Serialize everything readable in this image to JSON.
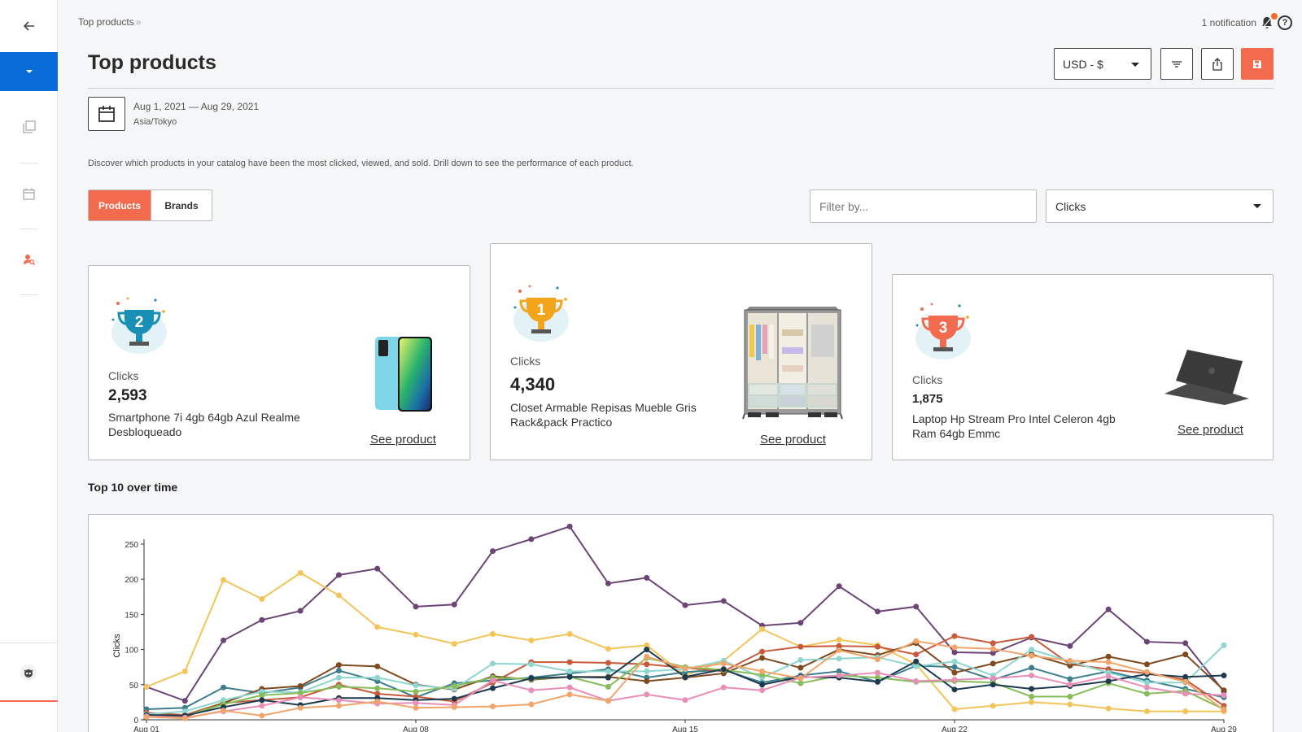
{
  "breadcrumb": {
    "current": "Top products",
    "separator": "»"
  },
  "header": {
    "notifications": "1 notification",
    "title": "Top products",
    "currency": "USD - $"
  },
  "icons": {
    "back": "arrow-left-icon",
    "pages": "pages-icon",
    "calendar": "calendar-icon",
    "user_search": "user-search-icon",
    "bell": "bell-icon",
    "help": "help-icon",
    "filter": "filter-lines-icon",
    "share": "share-icon",
    "save": "save-icon"
  },
  "date": {
    "range": "Aug 1, 2021 — Aug 29, 2021",
    "timezone": "Asia/Tokyo"
  },
  "description": "Discover which products in your catalog have been the most clicked, viewed, and sold. Drill down to see the performance of each product.",
  "tabs": {
    "products": "Products",
    "brands": "Brands"
  },
  "filter": {
    "placeholder": "Filter by...",
    "metric": "Clicks"
  },
  "podium": [
    {
      "rank": "2",
      "label": "Clicks",
      "value": "2,593",
      "name": "Smartphone 7i 4gb 64gb Azul Realme Desbloqueado",
      "link": "See product",
      "color": "#1a8fb5"
    },
    {
      "rank": "1",
      "label": "Clicks",
      "value": "4,340",
      "name": "Closet Armable Repisas Mueble Gris Rack&pack Practico",
      "link": "See product",
      "color": "#f2a51b"
    },
    {
      "rank": "3",
      "label": "Clicks",
      "value": "1,875",
      "name": "Laptop Hp Stream Pro Intel Celeron 4gb Ram 64gb Emmc",
      "link": "See product",
      "color": "#f26b4f"
    }
  ],
  "chart_heading": "Top 10 over time",
  "colors": {
    "accent": "#f26b4f",
    "nav_active": "#0a6cd6"
  },
  "chart_data": {
    "type": "line",
    "ylabel": "Clicks",
    "ylim": [
      0,
      280
    ],
    "yticks": [
      0,
      50,
      100,
      150,
      200,
      250
    ],
    "x": [
      "Aug 01",
      "Aug 02",
      "Aug 03",
      "Aug 04",
      "Aug 05",
      "Aug 06",
      "Aug 07",
      "Aug 08",
      "Aug 09",
      "Aug 10",
      "Aug 11",
      "Aug 12",
      "Aug 13",
      "Aug 14",
      "Aug 15",
      "Aug 16",
      "Aug 17",
      "Aug 18",
      "Aug 19",
      "Aug 20",
      "Aug 21",
      "Aug 22",
      "Aug 23",
      "Aug 24",
      "Aug 25",
      "Aug 26",
      "Aug 27",
      "Aug 28",
      "Aug 29"
    ],
    "xticks": [
      "Aug 01",
      "Aug 08",
      "Aug 15",
      "Aug 22",
      "Aug 29"
    ],
    "grid": false,
    "series": [
      {
        "color": "#6b4576",
        "values": [
          47,
          27,
          113,
          142,
          155,
          206,
          215,
          161,
          164,
          240,
          257,
          275,
          194,
          202,
          163,
          169,
          134,
          138,
          190,
          154,
          161,
          96,
          95,
          117,
          105,
          157,
          111,
          109,
          40
        ]
      },
      {
        "color": "#f2c45a",
        "values": [
          47,
          69,
          199,
          172,
          209,
          177,
          132,
          121,
          108,
          122,
          113,
          122,
          101,
          106,
          63,
          84,
          129,
          104,
          114,
          106,
          79,
          15,
          20,
          25,
          22,
          16,
          12,
          12,
          12
        ]
      },
      {
        "color": "#3d7d8c",
        "values": [
          15,
          17,
          46,
          38,
          46,
          70,
          55,
          32,
          52,
          56,
          60,
          66,
          72,
          60,
          68,
          71,
          53,
          63,
          69,
          54,
          77,
          75,
          57,
          74,
          58,
          69,
          56,
          44,
          32
        ]
      },
      {
        "color": "#c85a3c",
        "values": [
          10,
          7,
          24,
          28,
          32,
          50,
          37,
          33,
          26,
          53,
          82,
          82,
          81,
          79,
          74,
          69,
          97,
          104,
          105,
          104,
          93,
          119,
          109,
          118,
          79,
          72,
          66,
          57,
          20
        ]
      },
      {
        "color": "#7f4a1f",
        "values": [
          6,
          4,
          24,
          44,
          48,
          78,
          76,
          50,
          43,
          62,
          57,
          61,
          61,
          55,
          60,
          66,
          88,
          74,
          100,
          92,
          109,
          67,
          80,
          93,
          77,
          90,
          79,
          93,
          42
        ]
      },
      {
        "color": "#8ed6cf",
        "values": [
          8,
          12,
          28,
          40,
          39,
          60,
          60,
          49,
          44,
          80,
          79,
          69,
          69,
          69,
          72,
          84,
          60,
          85,
          87,
          89,
          76,
          83,
          63,
          100,
          83,
          67,
          53,
          53,
          106
        ]
      },
      {
        "color": "#86bd5a",
        "values": [
          6,
          6,
          22,
          35,
          38,
          47,
          45,
          40,
          48,
          60,
          58,
          61,
          47,
          88,
          75,
          71,
          64,
          52,
          63,
          60,
          54,
          55,
          53,
          33,
          33,
          52,
          37,
          41,
          15
        ]
      },
      {
        "color": "#1e3a4f",
        "values": [
          7,
          6,
          18,
          28,
          21,
          31,
          31,
          28,
          30,
          45,
          59,
          61,
          60,
          100,
          61,
          72,
          50,
          61,
          60,
          54,
          83,
          43,
          50,
          44,
          48,
          55,
          65,
          61,
          63
        ]
      },
      {
        "color": "#e88fb8",
        "values": [
          5,
          3,
          12,
          20,
          32,
          28,
          23,
          24,
          21,
          56,
          42,
          46,
          27,
          36,
          28,
          46,
          42,
          60,
          63,
          67,
          55,
          57,
          59,
          63,
          50,
          62,
          46,
          37,
          35
        ]
      },
      {
        "color": "#f2a56b",
        "values": [
          4,
          2,
          13,
          6,
          17,
          20,
          26,
          17,
          18,
          19,
          22,
          36,
          27,
          90,
          73,
          80,
          69,
          59,
          99,
          86,
          112,
          103,
          101,
          91,
          84,
          82,
          68,
          54,
          14
        ]
      }
    ]
  }
}
